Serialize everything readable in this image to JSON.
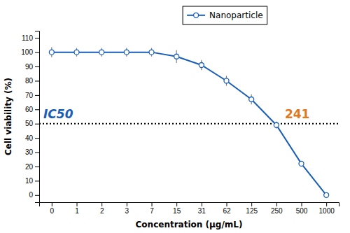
{
  "chart_data": {
    "type": "line",
    "xlabel": "Concentration (μg/mL)",
    "ylabel": "Cell viability (%)",
    "categories": [
      "0",
      "1",
      "2",
      "3",
      "7",
      "15",
      "31",
      "62",
      "125",
      "250",
      "500",
      "1000"
    ],
    "series": [
      {
        "name": "Nanoparticle",
        "color": "#1a5eb8",
        "marker": "circle",
        "line_style": "solid",
        "values": [
          100,
          100,
          100,
          100,
          100,
          97,
          91,
          80,
          67,
          49,
          22,
          0
        ],
        "errors": [
          3.5,
          3.0,
          3.0,
          3.0,
          3.0,
          4.5,
          3.5,
          3.5,
          3.5,
          2.5,
          0.5,
          0.5
        ]
      }
    ],
    "ylim": [
      -5,
      115
    ],
    "yticks": [
      0,
      10,
      20,
      30,
      40,
      50,
      60,
      70,
      80,
      90,
      100,
      110
    ],
    "reference_lines": [
      {
        "y": 50,
        "line_style": "dotted"
      }
    ],
    "annotations": [
      {
        "text": "IC50",
        "color": "#1a5eb8"
      },
      {
        "text": "241",
        "color": "#e07820"
      }
    ],
    "legend": "top",
    "grid": false
  }
}
